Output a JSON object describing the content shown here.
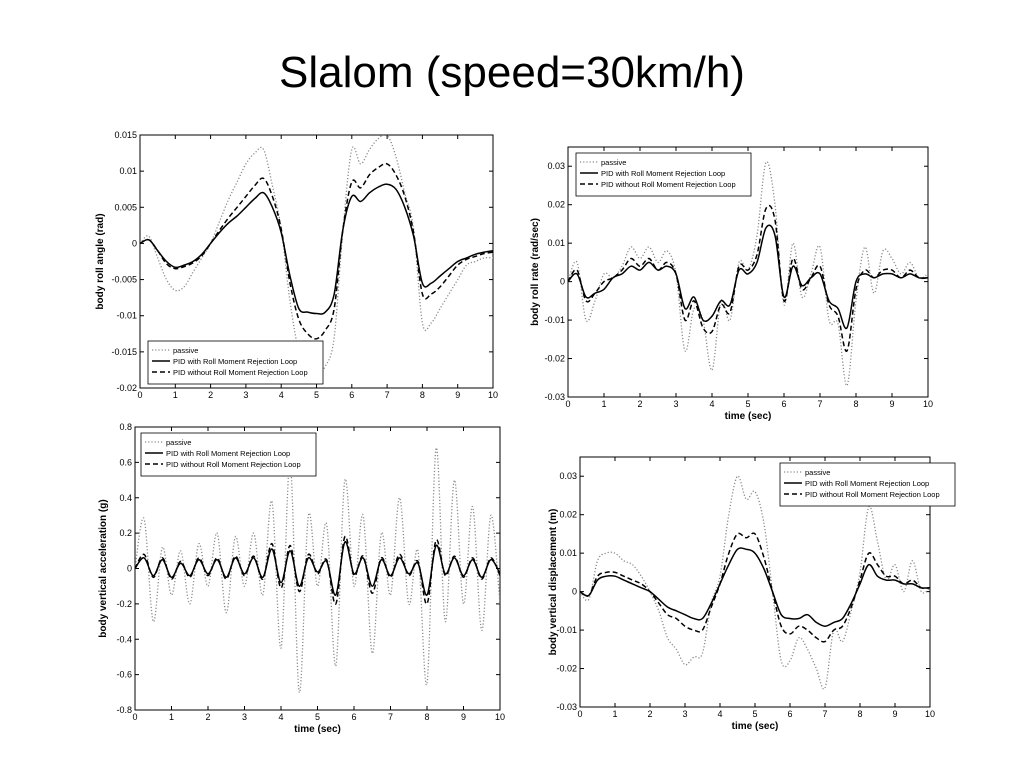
{
  "slide": {
    "title": "Slalom (speed=30km/h)"
  },
  "chart_data": [
    {
      "type": "line",
      "title": "",
      "xlabel": "",
      "ylabel": "body roll angle (rad)",
      "xlim": [
        0,
        10
      ],
      "ylim": [
        -0.02,
        0.015
      ],
      "xticks": [
        "0",
        "1",
        "2",
        "3",
        "4",
        "5",
        "6",
        "7",
        "8",
        "9",
        "10"
      ],
      "yticks": [
        "-0.02",
        "-0.015",
        "-0.01",
        "-0.005",
        "0",
        "0.005",
        "0.01",
        "0.015"
      ],
      "legend_position": "bottom-left",
      "grid": false,
      "x": [
        0,
        0.25,
        0.5,
        0.75,
        1,
        1.25,
        1.5,
        1.75,
        2,
        2.25,
        2.5,
        2.75,
        3,
        3.25,
        3.5,
        3.75,
        4,
        4.25,
        4.5,
        4.75,
        5,
        5.25,
        5.5,
        5.75,
        6,
        6.25,
        6.5,
        6.75,
        7,
        7.25,
        7.5,
        7.75,
        8,
        8.25,
        8.5,
        8.75,
        9,
        9.25,
        9.5,
        9.75,
        10
      ],
      "series": [
        {
          "name": "passive",
          "style": "dotted",
          "values": [
            0,
            0.001,
            -0.002,
            -0.005,
            -0.0065,
            -0.006,
            -0.004,
            -0.002,
            0,
            0.003,
            0.006,
            0.0085,
            0.011,
            0.0125,
            0.013,
            0.008,
            0.002,
            -0.008,
            -0.015,
            -0.0175,
            -0.018,
            -0.017,
            -0.013,
            0.002,
            0.013,
            0.011,
            0.013,
            0.0145,
            0.015,
            0.012,
            0.007,
            0.002,
            -0.011,
            -0.011,
            -0.009,
            -0.007,
            -0.005,
            -0.003,
            -0.0025,
            -0.002,
            -0.002
          ]
        },
        {
          "name": "PID with Roll Moment Rejection Loop",
          "style": "solid",
          "values": [
            0,
            0.0005,
            -0.001,
            -0.0025,
            -0.0033,
            -0.003,
            -0.0025,
            -0.0015,
            0,
            0.0015,
            0.0028,
            0.0038,
            0.005,
            0.0062,
            0.007,
            0.005,
            0.0015,
            -0.0045,
            -0.009,
            -0.0095,
            -0.0097,
            -0.0095,
            -0.007,
            0.002,
            0.0065,
            0.0058,
            0.007,
            0.0078,
            0.0082,
            0.0075,
            0.005,
            0.001,
            -0.0055,
            -0.0055,
            -0.0045,
            -0.0035,
            -0.0025,
            -0.002,
            -0.0015,
            -0.0012,
            -0.001
          ]
        },
        {
          "name": "PID without Roll Moment Rejection Loop",
          "style": "dashed",
          "values": [
            0,
            0.0005,
            -0.001,
            -0.0028,
            -0.0035,
            -0.0032,
            -0.0027,
            -0.0017,
            0,
            0.0018,
            0.0035,
            0.005,
            0.0065,
            0.008,
            0.009,
            0.0065,
            0.002,
            -0.0055,
            -0.0105,
            -0.0125,
            -0.0132,
            -0.012,
            -0.009,
            0.002,
            0.0085,
            0.0077,
            0.0095,
            0.0105,
            0.011,
            0.0095,
            0.0065,
            0.0015,
            -0.007,
            -0.007,
            -0.006,
            -0.0045,
            -0.003,
            -0.0022,
            -0.0018,
            -0.0014,
            -0.0012
          ]
        }
      ]
    },
    {
      "type": "line",
      "title": "",
      "xlabel": "time (sec)",
      "ylabel": "body roll rate (rad/sec)",
      "xlim": [
        0,
        10
      ],
      "ylim": [
        -0.03,
        0.035
      ],
      "xticks": [
        "0",
        "1",
        "2",
        "3",
        "4",
        "5",
        "6",
        "7",
        "8",
        "9",
        "10"
      ],
      "yticks": [
        "-0.03",
        "-0.02",
        "-0.01",
        "0",
        "0.01",
        "0.02",
        "0.03"
      ],
      "legend_position": "top-left",
      "grid": false,
      "x": [
        0,
        0.25,
        0.5,
        0.75,
        1,
        1.25,
        1.5,
        1.75,
        2,
        2.25,
        2.5,
        2.75,
        3,
        3.25,
        3.5,
        3.75,
        4,
        4.25,
        4.5,
        4.75,
        5,
        5.25,
        5.5,
        5.75,
        6,
        6.25,
        6.5,
        6.75,
        7,
        7.25,
        7.5,
        7.75,
        8,
        8.25,
        8.5,
        8.75,
        9,
        9.25,
        9.5,
        9.75,
        10
      ],
      "series": [
        {
          "name": "passive",
          "style": "dotted",
          "values": [
            0,
            0.005,
            -0.01,
            -0.005,
            0.002,
            0.001,
            0.004,
            0.009,
            0.006,
            0.009,
            0.005,
            0.008,
            0.002,
            -0.018,
            -0.007,
            -0.01,
            -0.023,
            -0.005,
            -0.01,
            0.005,
            0.003,
            0.012,
            0.031,
            0.02,
            -0.006,
            0.01,
            -0.004,
            0.002,
            0.009,
            -0.01,
            -0.011,
            -0.027,
            -0.005,
            0.009,
            -0.003,
            0.008,
            0.006,
            0.002,
            0.005,
            0.001,
            0.002
          ]
        },
        {
          "name": "PID with Roll Moment Rejection Loop",
          "style": "solid",
          "values": [
            0,
            0.002,
            -0.004,
            -0.003,
            -0.002,
            0.001,
            0.002,
            0.004,
            0.003,
            0.005,
            0.003,
            0.004,
            0.002,
            -0.007,
            -0.004,
            -0.01,
            -0.009,
            -0.005,
            -0.006,
            0.003,
            0.002,
            0.005,
            0.014,
            0.012,
            -0.004,
            0.004,
            -0.001,
            0.001,
            0.002,
            -0.005,
            -0.007,
            -0.012,
            0,
            0.002,
            0.001,
            0.002,
            0.002,
            0.001,
            0.002,
            0.001,
            0.001
          ]
        },
        {
          "name": "PID without Roll Moment Rejection Loop",
          "style": "dashed",
          "values": [
            0,
            0.003,
            -0.005,
            -0.003,
            0,
            0.001,
            0.003,
            0.006,
            0.004,
            0.006,
            0.003,
            0.005,
            0.002,
            -0.01,
            -0.005,
            -0.012,
            -0.013,
            -0.006,
            -0.008,
            0.004,
            0.003,
            0.007,
            0.019,
            0.016,
            -0.005,
            0.006,
            -0.002,
            0.001,
            0.004,
            -0.006,
            -0.009,
            -0.018,
            -0.002,
            0.003,
            0.001,
            0.003,
            0.003,
            0.001,
            0.003,
            0.001,
            0.001
          ]
        }
      ]
    },
    {
      "type": "line",
      "title": "",
      "xlabel": "time (sec)",
      "ylabel": "body vertical acceleration (g)",
      "xlim": [
        0,
        10
      ],
      "ylim": [
        -0.8,
        0.8
      ],
      "xticks": [
        "0",
        "1",
        "2",
        "3",
        "4",
        "5",
        "6",
        "7",
        "8",
        "9",
        "10"
      ],
      "yticks": [
        "-0.8",
        "-0.6",
        "-0.4",
        "-0.2",
        "0",
        "0.2",
        "0.4",
        "0.6",
        "0.8"
      ],
      "legend_position": "top-left",
      "grid": false,
      "x": [
        0,
        0.25,
        0.5,
        0.75,
        1,
        1.25,
        1.5,
        1.75,
        2,
        2.25,
        2.5,
        2.75,
        3,
        3.25,
        3.5,
        3.75,
        4,
        4.25,
        4.5,
        4.75,
        5,
        5.25,
        5.5,
        5.75,
        6,
        6.25,
        6.5,
        6.75,
        7,
        7.25,
        7.5,
        7.75,
        8,
        8.25,
        8.5,
        8.75,
        9,
        9.25,
        9.5,
        9.75,
        10
      ],
      "series": [
        {
          "name": "passive",
          "style": "dotted",
          "values": [
            0,
            0.28,
            -0.3,
            0.12,
            -0.15,
            0.1,
            -0.2,
            0.14,
            -0.1,
            0.2,
            -0.25,
            0.18,
            -0.1,
            0.2,
            -0.15,
            0.38,
            -0.45,
            0.6,
            -0.7,
            0.3,
            -0.1,
            0.25,
            -0.55,
            0.5,
            -0.1,
            0.3,
            -0.48,
            0.2,
            -0.15,
            0.4,
            -0.2,
            0.1,
            -0.65,
            0.68,
            -0.3,
            0.5,
            -0.2,
            0.35,
            -0.35,
            0.3,
            -0.2
          ]
        },
        {
          "name": "PID with Roll Moment Rejection Loop",
          "style": "solid",
          "values": [
            0,
            0.06,
            -0.04,
            0.05,
            -0.05,
            0.03,
            -0.04,
            0.05,
            -0.03,
            0.05,
            -0.05,
            0.06,
            -0.03,
            0.06,
            -0.05,
            0.11,
            -0.08,
            0.1,
            -0.1,
            0.06,
            -0.02,
            0.04,
            -0.15,
            0.15,
            -0.03,
            0.06,
            -0.1,
            0.05,
            -0.04,
            0.06,
            -0.03,
            0.03,
            -0.15,
            0.13,
            -0.03,
            0.06,
            -0.04,
            0.05,
            -0.05,
            0.05,
            -0.03
          ]
        },
        {
          "name": "PID without Roll Moment Rejection Loop",
          "style": "dashed",
          "values": [
            0,
            0.08,
            -0.05,
            0.06,
            -0.06,
            0.04,
            -0.05,
            0.06,
            -0.04,
            0.06,
            -0.06,
            0.07,
            -0.04,
            0.07,
            -0.06,
            0.14,
            -0.11,
            0.13,
            -0.13,
            0.08,
            -0.03,
            0.05,
            -0.2,
            0.18,
            -0.04,
            0.07,
            -0.14,
            0.06,
            -0.05,
            0.08,
            -0.04,
            0.04,
            -0.2,
            0.16,
            -0.04,
            0.07,
            -0.05,
            0.06,
            -0.06,
            0.06,
            -0.04
          ]
        }
      ]
    },
    {
      "type": "line",
      "title": "",
      "xlabel": "time (sec)",
      "ylabel": "body vertical displacement (m)",
      "xlim": [
        0,
        10
      ],
      "ylim": [
        -0.03,
        0.035
      ],
      "xticks": [
        "0",
        "1",
        "2",
        "3",
        "4",
        "5",
        "6",
        "7",
        "8",
        "9",
        "10"
      ],
      "yticks": [
        "-0.03",
        "-0.02",
        "-0.01",
        "0",
        "0.01",
        "0.02",
        "0.03"
      ],
      "legend_position": "top-right",
      "grid": false,
      "x": [
        0,
        0.25,
        0.5,
        0.75,
        1,
        1.25,
        1.5,
        1.75,
        2,
        2.25,
        2.5,
        2.75,
        3,
        3.25,
        3.5,
        3.75,
        4,
        4.25,
        4.5,
        4.75,
        5,
        5.25,
        5.5,
        5.75,
        6,
        6.25,
        6.5,
        6.75,
        7,
        7.25,
        7.5,
        7.75,
        8,
        8.25,
        8.5,
        8.75,
        9,
        9.25,
        9.5,
        9.75,
        10
      ],
      "series": [
        {
          "name": "passive",
          "style": "dotted",
          "values": [
            0,
            -0.002,
            0.008,
            0.01,
            0.01,
            0.008,
            0.007,
            0.004,
            0,
            -0.005,
            -0.012,
            -0.015,
            -0.019,
            -0.017,
            -0.016,
            -0.003,
            0.004,
            0.02,
            0.03,
            0.024,
            0.026,
            0.018,
            0,
            -0.018,
            -0.018,
            -0.012,
            -0.015,
            -0.02,
            -0.025,
            -0.01,
            -0.013,
            -0.005,
            0.005,
            0.022,
            0.013,
            0.003,
            0.007,
            0,
            0.008,
            0,
            0.001
          ]
        },
        {
          "name": "PID with Roll Moment Rejection Loop",
          "style": "solid",
          "values": [
            0,
            -0.001,
            0.003,
            0.004,
            0.004,
            0.003,
            0.002,
            0.001,
            0,
            -0.002,
            -0.004,
            -0.005,
            -0.006,
            -0.007,
            -0.007,
            -0.003,
            0.002,
            0.007,
            0.011,
            0.011,
            0.01,
            0.006,
            0,
            -0.006,
            -0.007,
            -0.007,
            -0.006,
            -0.008,
            -0.009,
            -0.008,
            -0.007,
            -0.003,
            0.002,
            0.007,
            0.004,
            0.003,
            0.003,
            0.002,
            0.002,
            0.001,
            0.001
          ]
        },
        {
          "name": "PID without Roll Moment Rejection Loop",
          "style": "dashed",
          "values": [
            0,
            -0.001,
            0.004,
            0.005,
            0.005,
            0.004,
            0.003,
            0.002,
            0,
            -0.003,
            -0.006,
            -0.007,
            -0.009,
            -0.01,
            -0.01,
            -0.004,
            0.002,
            0.01,
            0.015,
            0.014,
            0.015,
            0.009,
            0,
            -0.009,
            -0.011,
            -0.009,
            -0.01,
            -0.012,
            -0.013,
            -0.01,
            -0.009,
            -0.004,
            0.003,
            0.01,
            0.007,
            0.004,
            0.004,
            0.002,
            0.003,
            0.001,
            0.001
          ]
        }
      ]
    }
  ]
}
